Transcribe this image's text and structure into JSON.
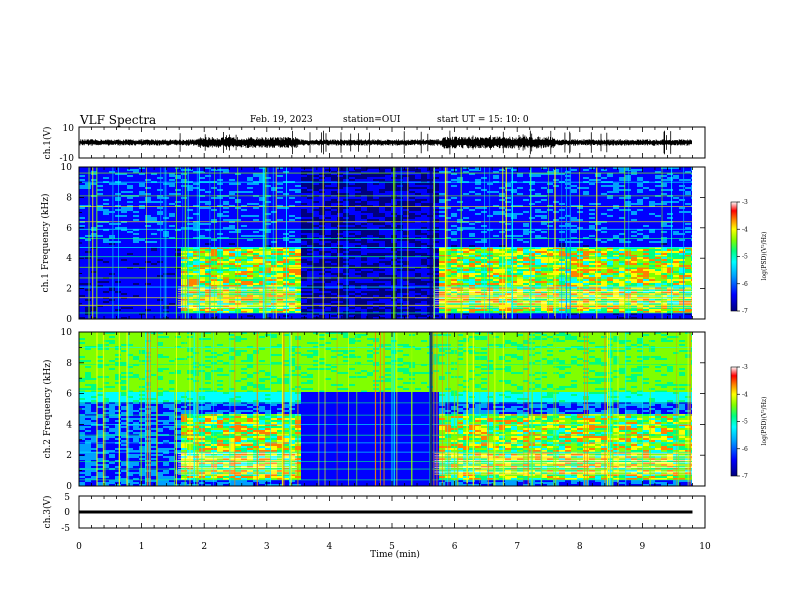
{
  "header": {
    "title": "VLF Spectra",
    "date": "Feb. 19, 2023",
    "station": "station=OUI",
    "start": "start UT = 15: 10: 0"
  },
  "chart_data": [
    {
      "type": "line",
      "panel": "ch1-waveform",
      "ylabel": "ch.1(V)",
      "ylim": [
        -10,
        10
      ],
      "yticks": [
        "10",
        "-10"
      ],
      "xlim": [
        0,
        10
      ]
    },
    {
      "type": "heatmap",
      "panel": "ch1-spectrogram",
      "ylabel": "ch.1 Frequency (kHz)",
      "ylim": [
        0,
        10
      ],
      "yticks": [
        "0",
        "2",
        "4",
        "6",
        "8",
        "10"
      ],
      "xlim": [
        0,
        10
      ],
      "colorbar": {
        "label": "log(PSD)(V²/Hz)",
        "range": [
          -7,
          -3
        ],
        "ticks": [
          "-3",
          "-4",
          "-5",
          "-6",
          "-7"
        ]
      }
    },
    {
      "type": "heatmap",
      "panel": "ch2-spectrogram",
      "ylabel": "ch.2 Frequency (kHz)",
      "ylim": [
        0,
        10
      ],
      "yticks": [
        "0",
        "2",
        "4",
        "6",
        "8",
        "10"
      ],
      "xlim": [
        0,
        10
      ],
      "colorbar": {
        "label": "log(PSD)(V²/Hz)",
        "range": [
          -7,
          -3
        ],
        "ticks": [
          "-3",
          "-4",
          "-5",
          "-6",
          "-7"
        ]
      }
    },
    {
      "type": "line",
      "panel": "ch3-waveform",
      "ylabel": "ch.3(V)",
      "ylim": [
        -5,
        5
      ],
      "yticks": [
        "5",
        "0",
        "-5"
      ],
      "xlim": [
        0,
        10
      ],
      "x": [
        0,
        9.8
      ],
      "y": [
        0,
        0
      ]
    }
  ],
  "xaxis": {
    "label": "Time (min)",
    "ticks": [
      "0",
      "1",
      "2",
      "3",
      "4",
      "5",
      "6",
      "7",
      "8",
      "9",
      "10"
    ]
  },
  "colors": {
    "colormap": [
      "#00007f",
      "#0000ff",
      "#00a0ff",
      "#00ffff",
      "#00ff80",
      "#80ff00",
      "#ffff00",
      "#ff8000",
      "#ff0000",
      "#ffffff"
    ],
    "background": "#ffffff",
    "trace": "#000000"
  }
}
